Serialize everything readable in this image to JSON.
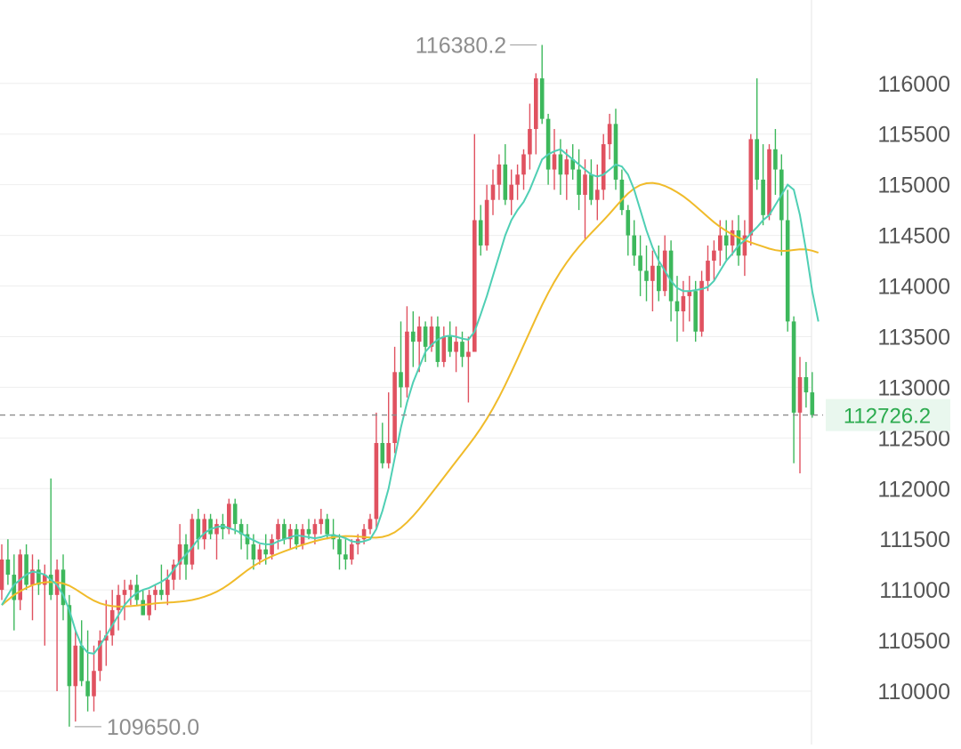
{
  "chart_data": {
    "type": "candlestick",
    "ylim": [
      109650,
      116380.2
    ],
    "y_ticks": [
      116000,
      115500,
      115000,
      114500,
      114000,
      113500,
      113000,
      112500,
      112000,
      111500,
      111000,
      110500,
      110000
    ],
    "y_tick_labels": [
      "116000",
      "115500",
      "115000",
      "114500",
      "114000",
      "113500",
      "113000",
      "112500",
      "112000",
      "111500",
      "111000",
      "110500",
      "110000"
    ],
    "grid": true,
    "current_price": 112726.2,
    "current_price_label": "112726.2",
    "max_annotation": {
      "label": "116380.2",
      "value": 116380.2
    },
    "min_annotation": {
      "label": "109650.0",
      "value": 109650.0
    },
    "colors": {
      "up": "#e05260",
      "down": "#3db85c",
      "ma_fast": "#4fcfb4",
      "ma_slow": "#f0bb2a",
      "price_line": "#8c8c8c",
      "price_label": "#2cab4f"
    },
    "ohlc": [
      [
        111000,
        111450,
        110900,
        111300
      ],
      [
        111300,
        111500,
        111050,
        111150
      ],
      [
        111150,
        111350,
        110600,
        110900
      ],
      [
        110900,
        111400,
        110800,
        111350
      ],
      [
        111350,
        111450,
        111000,
        111050
      ],
      [
        111050,
        111350,
        110700,
        111200
      ],
      [
        111200,
        111300,
        110950,
        111050
      ],
      [
        111050,
        111250,
        110450,
        111150
      ],
      [
        111150,
        112100,
        110900,
        110950
      ],
      [
        110950,
        111300,
        110000,
        111200
      ],
      [
        111200,
        111350,
        110700,
        110850
      ],
      [
        110850,
        110950,
        109650,
        110050
      ],
      [
        110050,
        110600,
        109700,
        110450
      ],
      [
        110450,
        110700,
        110050,
        110100
      ],
      [
        110100,
        110600,
        109800,
        109950
      ],
      [
        109950,
        110450,
        109800,
        110200
      ],
      [
        110200,
        110600,
        110100,
        110500
      ],
      [
        110500,
        110900,
        110250,
        110550
      ],
      [
        110550,
        111000,
        110450,
        110800
      ],
      [
        110800,
        111050,
        110600,
        110950
      ],
      [
        110950,
        111100,
        110700,
        111000
      ],
      [
        111000,
        111100,
        110850,
        111050
      ],
      [
        111050,
        111150,
        110850,
        110900
      ],
      [
        110900,
        111000,
        110750,
        110750
      ],
      [
        110750,
        111000,
        110700,
        110950
      ],
      [
        110950,
        111050,
        110800,
        111000
      ],
      [
        111000,
        111250,
        110900,
        110950
      ],
      [
        110950,
        111200,
        110850,
        111100
      ],
      [
        111100,
        111300,
        111000,
        111250
      ],
      [
        111250,
        111650,
        111100,
        111450
      ],
      [
        111450,
        111550,
        111100,
        111250
      ],
      [
        111250,
        111750,
        111200,
        111700
      ],
      [
        111700,
        111800,
        111400,
        111500
      ],
      [
        111500,
        111750,
        111400,
        111700
      ],
      [
        111700,
        111750,
        111500,
        111550
      ],
      [
        111550,
        111700,
        111300,
        111650
      ],
      [
        111650,
        111750,
        111500,
        111600
      ],
      [
        111600,
        111900,
        111550,
        111850
      ],
      [
        111850,
        111900,
        111550,
        111650
      ],
      [
        111650,
        111700,
        111400,
        111550
      ],
      [
        111550,
        111650,
        111300,
        111450
      ],
      [
        111450,
        111550,
        111200,
        111300
      ],
      [
        111300,
        111450,
        111250,
        111400
      ],
      [
        111400,
        111550,
        111250,
        111350
      ],
      [
        111350,
        111550,
        111300,
        111500
      ],
      [
        111500,
        111700,
        111400,
        111650
      ],
      [
        111650,
        111700,
        111450,
        111500
      ],
      [
        111500,
        111650,
        111400,
        111600
      ],
      [
        111600,
        111650,
        111400,
        111450
      ],
      [
        111450,
        111650,
        111400,
        111600
      ],
      [
        111600,
        111700,
        111500,
        111550
      ],
      [
        111550,
        111700,
        111450,
        111650
      ],
      [
        111650,
        111800,
        111550,
        111700
      ],
      [
        111700,
        111750,
        111500,
        111550
      ],
      [
        111550,
        111700,
        111400,
        111500
      ],
      [
        111500,
        111550,
        111200,
        111350
      ],
      [
        111350,
        111500,
        111200,
        111300
      ],
      [
        111300,
        111500,
        111250,
        111450
      ],
      [
        111450,
        111550,
        111350,
        111500
      ],
      [
        111500,
        111650,
        111450,
        111600
      ],
      [
        111600,
        111750,
        111550,
        111700
      ],
      [
        111700,
        112750,
        111600,
        112450
      ],
      [
        112450,
        112650,
        112200,
        112250
      ],
      [
        112250,
        112950,
        112200,
        112450
      ],
      [
        112450,
        113400,
        112350,
        113150
      ],
      [
        113150,
        113650,
        112800,
        113000
      ],
      [
        113000,
        113800,
        112900,
        113550
      ],
      [
        113550,
        113750,
        113200,
        113450
      ],
      [
        113450,
        113700,
        113150,
        113600
      ],
      [
        113600,
        113650,
        113250,
        113400
      ],
      [
        113400,
        113700,
        113350,
        113600
      ],
      [
        113600,
        113700,
        113200,
        113250
      ],
      [
        113250,
        113600,
        113200,
        113500
      ],
      [
        113500,
        113650,
        113300,
        113350
      ],
      [
        113350,
        113600,
        113150,
        113450
      ],
      [
        113450,
        113550,
        113200,
        113300
      ],
      [
        113300,
        113500,
        112850,
        113350
      ],
      [
        113350,
        115500,
        113350,
        114650
      ],
      [
        114650,
        114800,
        114300,
        114400
      ],
      [
        114400,
        115000,
        114350,
        114850
      ],
      [
        114850,
        115150,
        114700,
        115000
      ],
      [
        115000,
        115300,
        114850,
        115200
      ],
      [
        115200,
        115400,
        114800,
        114850
      ],
      [
        114850,
        115150,
        114700,
        115000
      ],
      [
        115000,
        115200,
        114850,
        115100
      ],
      [
        115100,
        115350,
        114950,
        115300
      ],
      [
        115300,
        115800,
        115150,
        115550
      ],
      [
        115550,
        116100,
        115300,
        116050
      ],
      [
        116050,
        116380.2,
        115600,
        115650
      ],
      [
        115650,
        115700,
        115000,
        115150
      ],
      [
        115150,
        115550,
        114950,
        115300
      ],
      [
        115300,
        115450,
        114900,
        115100
      ],
      [
        115100,
        115350,
        114850,
        115250
      ],
      [
        115250,
        115400,
        115050,
        115150
      ],
      [
        115150,
        115350,
        114750,
        114900
      ],
      [
        114900,
        115250,
        114450,
        115100
      ],
      [
        115100,
        115250,
        114800,
        114850
      ],
      [
        114850,
        115200,
        114650,
        114950
      ],
      [
        114950,
        115500,
        114850,
        115400
      ],
      [
        115400,
        115700,
        115250,
        115600
      ],
      [
        115600,
        115750,
        114950,
        115050
      ],
      [
        115050,
        115150,
        114700,
        114750
      ],
      [
        114750,
        114800,
        114300,
        114500
      ],
      [
        114500,
        114650,
        114200,
        114300
      ],
      [
        114300,
        114500,
        113900,
        114150
      ],
      [
        114150,
        114400,
        113850,
        114050
      ],
      [
        114050,
        114350,
        113750,
        114200
      ],
      [
        114200,
        114400,
        113850,
        113950
      ],
      [
        113950,
        114500,
        113900,
        114350
      ],
      [
        114350,
        114450,
        113650,
        113850
      ],
      [
        113850,
        114100,
        113450,
        113750
      ],
      [
        113750,
        114050,
        113550,
        113900
      ],
      [
        113900,
        114100,
        113650,
        113950
      ],
      [
        113950,
        114050,
        113450,
        113550
      ],
      [
        113550,
        114150,
        113500,
        114050
      ],
      [
        114050,
        114400,
        113950,
        114250
      ],
      [
        114250,
        114450,
        114050,
        114350
      ],
      [
        114350,
        114650,
        114200,
        114500
      ],
      [
        114500,
        114650,
        114250,
        114400
      ],
      [
        114400,
        114650,
        114300,
        114550
      ],
      [
        114550,
        114700,
        114200,
        114300
      ],
      [
        114300,
        114650,
        114100,
        114500
      ],
      [
        114500,
        115500,
        114400,
        115450
      ],
      [
        115450,
        116050,
        114950,
        115050
      ],
      [
        115050,
        115400,
        114600,
        114700
      ],
      [
        114700,
        115400,
        114650,
        115350
      ],
      [
        115350,
        115550,
        114900,
        115150
      ],
      [
        115150,
        115300,
        114300,
        114650
      ],
      [
        114650,
        114950,
        113550,
        113650
      ],
      [
        113650,
        113700,
        112250,
        112750
      ],
      [
        112750,
        113300,
        112150,
        113100
      ],
      [
        113100,
        113250,
        112800,
        112950
      ],
      [
        112950,
        113150,
        112700,
        112726.2
      ]
    ],
    "ma_fast": [
      110850,
      110950,
      111050,
      111100,
      111150,
      111180,
      111170,
      111150,
      111100,
      111050,
      110950,
      110800,
      110600,
      110450,
      110380,
      110370,
      110450,
      110550,
      110650,
      110750,
      110850,
      110920,
      110970,
      111000,
      111020,
      111050,
      111080,
      111120,
      111200,
      111280,
      111350,
      111420,
      111500,
      111560,
      111600,
      111620,
      111630,
      111610,
      111590,
      111560,
      111520,
      111490,
      111460,
      111450,
      111450,
      111480,
      111500,
      111520,
      111540,
      111530,
      111520,
      111510,
      111520,
      111540,
      111540,
      111530,
      111510,
      111480,
      111470,
      111480,
      111500,
      111600,
      111780,
      112000,
      112300,
      112600,
      112850,
      113050,
      113200,
      113350,
      113420,
      113470,
      113500,
      113510,
      113500,
      113480,
      113470,
      113550,
      113720,
      113900,
      114100,
      114300,
      114500,
      114650,
      114750,
      114830,
      114950,
      115100,
      115250,
      115300,
      115330,
      115350,
      115300,
      115250,
      115200,
      115150,
      115100,
      115080,
      115100,
      115150,
      115200,
      115180,
      115100,
      114950,
      114750,
      114550,
      114380,
      114250,
      114150,
      114050,
      113980,
      113950,
      113950,
      113960,
      113970,
      113990,
      114050,
      114150,
      114250,
      114320,
      114400,
      114450,
      114520,
      114580,
      114650,
      114700,
      114800,
      114900,
      115000,
      114950,
      114700,
      114350,
      113950,
      113650
    ]
  }
}
